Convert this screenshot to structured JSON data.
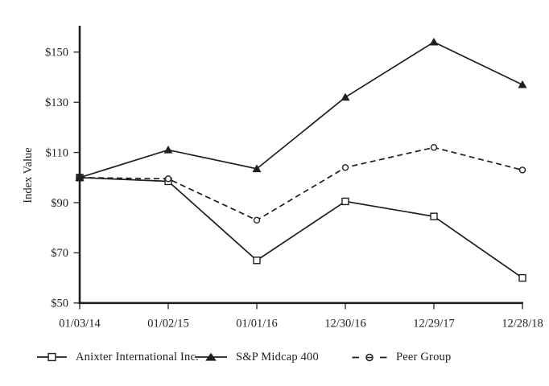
{
  "chart_data": {
    "type": "line",
    "ylabel": "Index Value",
    "ink_color": "#1f1f1f",
    "x_categories": [
      "01/03/14",
      "01/02/15",
      "01/01/16",
      "12/30/16",
      "12/29/17",
      "12/28/18"
    ],
    "y_ticks": [
      50,
      70,
      90,
      110,
      130,
      150
    ],
    "y_tick_labels": [
      "$50",
      "$70",
      "$90",
      "$110",
      "$130",
      "$150"
    ],
    "ylim": [
      50,
      160
    ],
    "grid": false,
    "legend_position": "bottom",
    "series": [
      {
        "name": "Anixter International Inc.",
        "line": "solid",
        "marker": "square-open",
        "values": [
          100,
          98.5,
          67,
          90.5,
          84.5,
          60
        ]
      },
      {
        "name": "S&P Midcap 400",
        "line": "solid",
        "marker": "triangle-filled",
        "values": [
          100,
          111,
          103.5,
          132,
          154,
          137
        ]
      },
      {
        "name": "Peer Group",
        "line": "dashed",
        "marker": "circle-open",
        "values": [
          100,
          99.5,
          83,
          104,
          112,
          103
        ]
      }
    ]
  },
  "legend": {
    "items": [
      {
        "label": "Anixter International Inc."
      },
      {
        "label": "S&P Midcap 400"
      },
      {
        "label": "Peer Group"
      }
    ]
  }
}
